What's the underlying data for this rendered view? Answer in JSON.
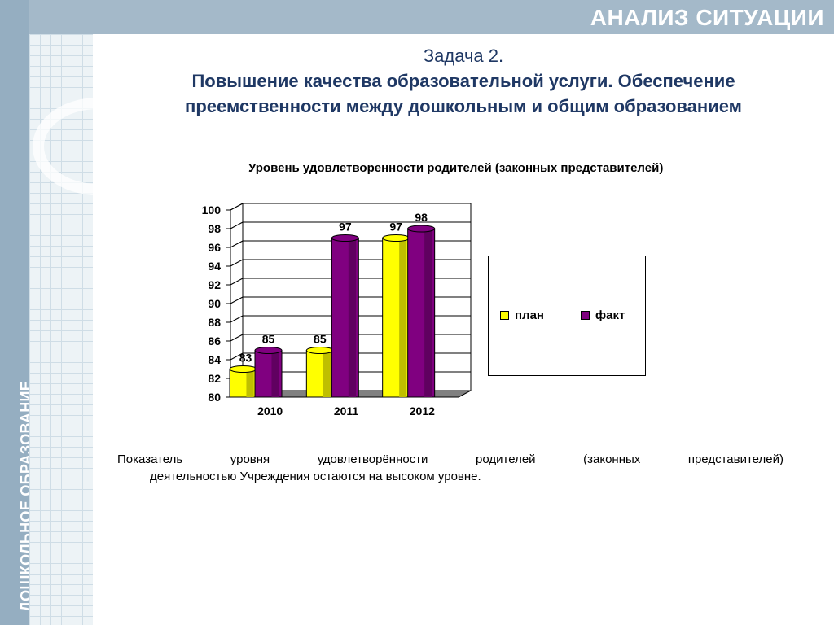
{
  "header": {
    "title": "АНАЛИЗ СИТУАЦИИ"
  },
  "sidebar": {
    "label": "ДОШКОЛЬНОЕ ОБРАЗОВАНИЕ"
  },
  "task": {
    "number": "Задача 2.",
    "title_line1": "Повышение качества образовательной услуги. Обеспечение",
    "title_line2": "преемственности между дошкольным и общим образованием"
  },
  "chart_data": {
    "type": "bar",
    "title": "Уровень удовлетворенности родителей (законных представителей)",
    "categories": [
      "2010",
      "2011",
      "2012"
    ],
    "series": [
      {
        "name": "план",
        "values": [
          83,
          85,
          97
        ],
        "color": "#ffff00"
      },
      {
        "name": "факт",
        "values": [
          85,
          97,
          98
        ],
        "color": "#800080"
      }
    ],
    "ylim": [
      80,
      100
    ],
    "yticks": [
      "80",
      "82",
      "84",
      "86",
      "88",
      "90",
      "92",
      "94",
      "96",
      "98",
      "100"
    ],
    "grid": true,
    "legend_position": "right"
  },
  "conclusion": {
    "line1_words": [
      "Показатель",
      "уровня",
      "удовлетворённости",
      "родителей",
      "(законных",
      "представителей)"
    ],
    "line2": "деятельностью Учреждения остаются  на  высоком  уровне."
  }
}
